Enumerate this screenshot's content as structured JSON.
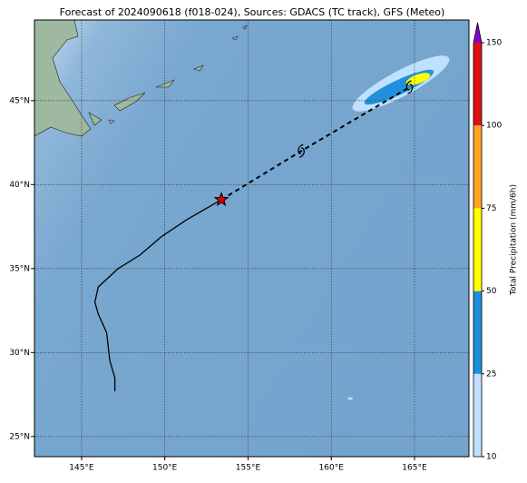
{
  "chart_data": {
    "type": "map",
    "title": "Forecast of 2024090618 (f018-024), Sources: GDACS (TC track), GFS (Meteo)",
    "xlim": [
      142.17,
      168.27
    ],
    "ylim": [
      23.8,
      49.8
    ],
    "xticks": [
      {
        "value": 145,
        "label": "145°E"
      },
      {
        "value": 150,
        "label": "150°E"
      },
      {
        "value": 155,
        "label": "155°E"
      },
      {
        "value": 160,
        "label": "160°E"
      },
      {
        "value": 165,
        "label": "165°E"
      }
    ],
    "yticks": [
      {
        "value": 25,
        "label": "25°N"
      },
      {
        "value": 30,
        "label": "30°N"
      },
      {
        "value": 35,
        "label": "35°N"
      },
      {
        "value": 40,
        "label": "40°N"
      },
      {
        "value": 45,
        "label": "45°N"
      }
    ],
    "grid": true,
    "track_past": {
      "x": [
        147,
        147,
        146.7,
        146.5,
        146,
        145.8,
        146,
        147.2,
        148.5,
        149.8,
        151.3,
        153.4
      ],
      "y": [
        27.7,
        28.5,
        29.5,
        31.2,
        32.3,
        33,
        33.9,
        35,
        35.8,
        36.9,
        37.9,
        39.1
      ],
      "color": "#000000"
    },
    "track_forecast": {
      "x": [
        153.4,
        158.2,
        164.7
      ],
      "y": [
        39.1,
        42,
        45.8
      ],
      "color": "#000000"
    },
    "current_position": {
      "x": 153.4,
      "y": 39.1,
      "color": "#dd0000"
    },
    "colorbar": {
      "label": "Total Precipitation (mm/6h)",
      "ticks": [
        10,
        25,
        50,
        75,
        100,
        150
      ],
      "colors": [
        "#bfe0ff",
        "#1e90dc",
        "#ffff00",
        "#ffa520",
        "#dd1111"
      ],
      "extend_color": "#8800cc"
    }
  }
}
